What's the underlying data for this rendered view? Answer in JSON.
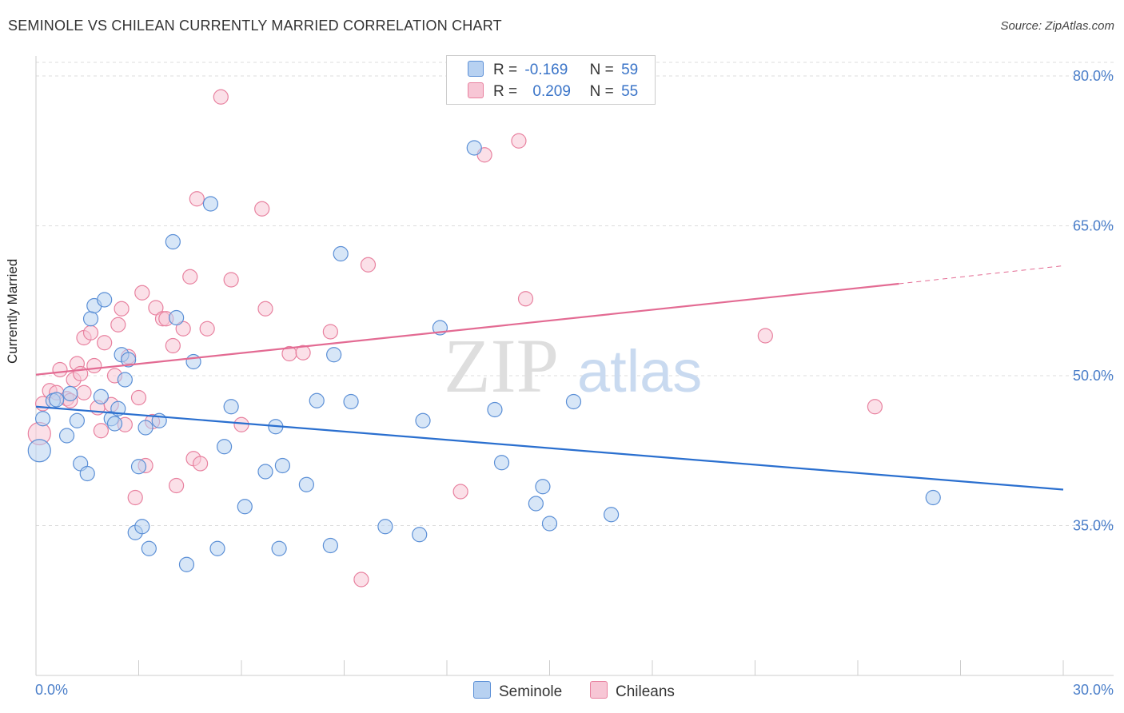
{
  "title": "SEMINOLE VS CHILEAN CURRENTLY MARRIED CORRELATION CHART",
  "source": "Source: ZipAtlas.com",
  "watermark": {
    "zip": "ZIP",
    "atlas": "atlas"
  },
  "colors": {
    "seminole": "#5b8fd6",
    "seminole_fill": "#b7d1f1",
    "seminole_line": "#2a6fcf",
    "chilean": "#e8819f",
    "chilean_fill": "#f7c6d5",
    "chilean_line": "#e36b93",
    "axis_text": "#4a7ec9"
  },
  "legend_top": {
    "rows": [
      {
        "r_label": "R =",
        "r_value": "-0.169",
        "n_label": "N =",
        "n_value": "59"
      },
      {
        "r_label": "R =",
        "r_value": "0.209",
        "n_label": "N =",
        "n_value": "55"
      }
    ]
  },
  "legend_bottom": {
    "seminole": "Seminole",
    "chilean": "Chileans"
  },
  "chart_data": {
    "type": "scatter",
    "title": "SEMINOLE VS CHILEAN CURRENTLY MARRIED CORRELATION CHART",
    "xlabel": "",
    "ylabel": "Currently Married",
    "xlim": [
      0,
      30
    ],
    "ylim": [
      20,
      82
    ],
    "x_tick_labels": [
      "0.0%",
      "30.0%"
    ],
    "y_ticks": [
      35,
      50,
      65,
      80
    ],
    "y_tick_labels": [
      "35.0%",
      "50.0%",
      "65.0%",
      "80.0%"
    ],
    "grid": true,
    "series": [
      {
        "name": "Seminole",
        "r": -0.169,
        "n": 59,
        "trend": {
          "x0": 0,
          "y0": 46.9,
          "x1": 30,
          "y1": 38.6
        },
        "points": [
          [
            0.1,
            42.5,
            14
          ],
          [
            0.2,
            45.7,
            9
          ],
          [
            0.5,
            47.5,
            9
          ],
          [
            0.6,
            47.6,
            9
          ],
          [
            0.9,
            44.0,
            9
          ],
          [
            1.0,
            48.2,
            9
          ],
          [
            1.2,
            45.5,
            9
          ],
          [
            1.3,
            41.2,
            9
          ],
          [
            1.5,
            40.2,
            9
          ],
          [
            1.6,
            55.7,
            9
          ],
          [
            1.7,
            57.0,
            9
          ],
          [
            1.9,
            47.9,
            9
          ],
          [
            2.0,
            57.6,
            9
          ],
          [
            2.2,
            45.7,
            9
          ],
          [
            2.3,
            45.2,
            9
          ],
          [
            2.4,
            46.7,
            9
          ],
          [
            2.5,
            52.1,
            9
          ],
          [
            2.6,
            49.6,
            9
          ],
          [
            2.7,
            51.6,
            9
          ],
          [
            2.9,
            34.3,
            9
          ],
          [
            3.0,
            40.9,
            9
          ],
          [
            3.1,
            34.9,
            9
          ],
          [
            3.2,
            44.8,
            9
          ],
          [
            3.3,
            32.7,
            9
          ],
          [
            3.6,
            45.5,
            9
          ],
          [
            4.0,
            63.4,
            9
          ],
          [
            4.1,
            55.8,
            9
          ],
          [
            4.4,
            31.1,
            9
          ],
          [
            4.6,
            51.4,
            9
          ],
          [
            5.1,
            67.2,
            9
          ],
          [
            5.3,
            32.7,
            9
          ],
          [
            5.5,
            42.9,
            9
          ],
          [
            5.7,
            46.9,
            9
          ],
          [
            6.1,
            36.9,
            9
          ],
          [
            6.7,
            40.4,
            9
          ],
          [
            7.0,
            44.9,
            9
          ],
          [
            7.1,
            32.7,
            9
          ],
          [
            7.2,
            41.0,
            9
          ],
          [
            7.9,
            39.1,
            9
          ],
          [
            8.2,
            47.5,
            9
          ],
          [
            8.6,
            33.0,
            9
          ],
          [
            8.7,
            52.1,
            9
          ],
          [
            8.9,
            62.2,
            9
          ],
          [
            9.2,
            47.4,
            9
          ],
          [
            10.2,
            34.9,
            9
          ],
          [
            11.2,
            34.1,
            9
          ],
          [
            11.3,
            45.5,
            9
          ],
          [
            11.8,
            54.8,
            9
          ],
          [
            12.8,
            72.8,
            9
          ],
          [
            13.4,
            46.6,
            9
          ],
          [
            13.6,
            41.3,
            9
          ],
          [
            14.6,
            37.2,
            9
          ],
          [
            14.8,
            38.9,
            9
          ],
          [
            15.0,
            35.2,
            9
          ],
          [
            15.7,
            47.4,
            9
          ],
          [
            16.8,
            36.1,
            9
          ],
          [
            26.2,
            37.8,
            9
          ]
        ]
      },
      {
        "name": "Chileans",
        "r": 0.209,
        "n": 55,
        "trend": {
          "x0": 0,
          "y0": 50.1,
          "x1": 25.2,
          "y1": 59.2
        },
        "trend_dashed": {
          "x0": 25.2,
          "y0": 59.2,
          "x1": 30,
          "y1": 61.0
        },
        "points": [
          [
            0.1,
            44.2,
            14
          ],
          [
            0.2,
            47.2,
            9
          ],
          [
            0.4,
            48.5,
            9
          ],
          [
            0.6,
            48.3,
            9
          ],
          [
            0.7,
            50.6,
            9
          ],
          [
            0.9,
            47.7,
            9
          ],
          [
            1.0,
            47.5,
            9
          ],
          [
            1.1,
            49.6,
            9
          ],
          [
            1.2,
            51.2,
            9
          ],
          [
            1.3,
            50.2,
            9
          ],
          [
            1.4,
            48.3,
            9
          ],
          [
            1.4,
            53.8,
            9
          ],
          [
            1.6,
            54.3,
            9
          ],
          [
            1.7,
            51.0,
            9
          ],
          [
            1.8,
            46.8,
            9
          ],
          [
            1.9,
            44.5,
            9
          ],
          [
            2.0,
            53.3,
            9
          ],
          [
            2.2,
            47.1,
            9
          ],
          [
            2.3,
            50.0,
            9
          ],
          [
            2.4,
            55.1,
            9
          ],
          [
            2.5,
            56.7,
            9
          ],
          [
            2.6,
            45.1,
            9
          ],
          [
            2.7,
            51.9,
            9
          ],
          [
            2.9,
            37.8,
            9
          ],
          [
            3.0,
            47.8,
            9
          ],
          [
            3.1,
            58.3,
            9
          ],
          [
            3.2,
            41.0,
            9
          ],
          [
            3.4,
            45.4,
            9
          ],
          [
            3.5,
            56.8,
            9
          ],
          [
            3.7,
            55.7,
            9
          ],
          [
            3.8,
            55.7,
            9
          ],
          [
            4.0,
            53.0,
            9
          ],
          [
            4.1,
            39.0,
            9
          ],
          [
            4.3,
            54.7,
            9
          ],
          [
            4.5,
            59.9,
            9
          ],
          [
            4.6,
            41.7,
            9
          ],
          [
            4.7,
            67.7,
            9
          ],
          [
            4.8,
            41.2,
            9
          ],
          [
            5.0,
            54.7,
            9
          ],
          [
            5.4,
            77.9,
            9
          ],
          [
            5.7,
            59.6,
            9
          ],
          [
            6.0,
            45.1,
            9
          ],
          [
            6.6,
            66.7,
            9
          ],
          [
            6.7,
            56.7,
            9
          ],
          [
            7.4,
            52.2,
            9
          ],
          [
            7.8,
            52.3,
            9
          ],
          [
            8.6,
            54.4,
            9
          ],
          [
            9.5,
            29.6,
            9
          ],
          [
            9.7,
            61.1,
            9
          ],
          [
            12.4,
            38.4,
            9
          ],
          [
            13.1,
            72.1,
            9
          ],
          [
            14.1,
            73.5,
            9
          ],
          [
            14.3,
            57.7,
            9
          ],
          [
            21.3,
            54.0,
            9
          ],
          [
            24.5,
            46.9,
            9
          ]
        ]
      }
    ]
  }
}
